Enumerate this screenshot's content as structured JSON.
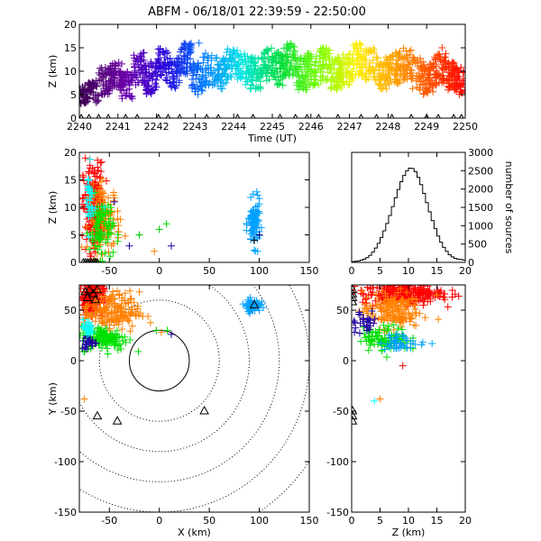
{
  "title": "ABFM - 06/18/01 22:39:59 - 22:50:00",
  "chart_data": [
    {
      "id": "time-height",
      "type": "scatter",
      "xlabel": "Time (UT)",
      "ylabel": "Z (km)",
      "xlim": [
        2240,
        2250
      ],
      "ylim": [
        0,
        20
      ],
      "x_ticks": [
        "2240",
        "2241",
        "2242",
        "2243",
        "2244",
        "2245",
        "2246",
        "2247",
        "2248",
        "2249",
        "2250"
      ],
      "y_ticks": [
        "0",
        "5",
        "10",
        "15",
        "20"
      ],
      "color_scale": "time rainbow: purple (2240) to red (2250)",
      "series": [
        {
          "x": [
            2240.2,
            2240.5,
            2240.8,
            2241.1,
            2241.4,
            2241.7,
            2242.0,
            2242.3,
            2242.6,
            2242.9,
            2243.2,
            2243.5,
            2243.8,
            2244.1,
            2244.4,
            2244.7,
            2245.0,
            2245.3,
            2245.6,
            2245.9,
            2246.2,
            2246.5,
            2246.8,
            2247.1,
            2247.4,
            2247.7,
            2248.0,
            2248.3,
            2248.6,
            2248.9,
            2249.2,
            2249.5,
            2249.8
          ],
          "y": [
            6,
            8,
            9,
            7,
            10,
            8,
            11,
            9,
            12,
            8,
            10,
            9,
            11,
            10,
            9,
            11,
            10,
            12,
            9,
            10,
            11,
            9,
            10,
            12,
            11,
            9,
            10,
            11,
            9,
            8,
            10,
            9,
            8
          ],
          "y_spread": [
            3,
            4,
            4,
            4,
            5,
            5,
            5,
            5,
            5,
            5,
            5,
            5,
            5,
            5,
            5,
            5,
            5,
            5,
            5,
            5,
            5,
            5,
            5,
            5,
            5,
            5,
            5,
            5,
            5,
            5,
            5,
            4,
            4
          ]
        }
      ],
      "outliers": [
        {
          "x": 2243.1,
          "y": 16
        },
        {
          "x": 2249.4,
          "y": 15
        },
        {
          "x": 2248.2,
          "y": 14
        }
      ],
      "stations_t": [
        2240.05,
        2240.25,
        2240.5,
        2240.75,
        2241.2,
        2241.5,
        2242.05,
        2242.3,
        2242.6,
        2243.3,
        2243.6,
        2244.1,
        2244.5,
        2245.2,
        2245.6,
        2245.9,
        2246.2,
        2246.7,
        2247.3,
        2247.7,
        2248.1,
        2248.6,
        2249.0,
        2249.3,
        2249.7,
        2249.9
      ]
    },
    {
      "id": "x-z",
      "type": "scatter",
      "xlabel": "",
      "ylabel": "Z (km)",
      "xlim": [
        -80,
        150
      ],
      "ylim": [
        0,
        20
      ],
      "x_ticks": [
        "-50",
        "0",
        "50",
        "100",
        "150"
      ],
      "y_ticks": [
        "0",
        "5",
        "10",
        "15",
        "20"
      ],
      "clusters": [
        {
          "color": "#ff0000",
          "cx": -66,
          "cy": 10,
          "sx": 5,
          "sy": 4,
          "n": 220
        },
        {
          "color": "#ff8000",
          "cx": -55,
          "cy": 8,
          "sx": 8,
          "sy": 3,
          "n": 120
        },
        {
          "color": "#00e000",
          "cx": -58,
          "cy": 6,
          "sx": 6,
          "sy": 3,
          "n": 80
        },
        {
          "color": "#00a0ff",
          "cx": 95,
          "cy": 7,
          "sx": 3,
          "sy": 2,
          "n": 90
        },
        {
          "color": "#00ffff",
          "cx": -70,
          "cy": 11,
          "sx": 2,
          "sy": 3,
          "n": 30
        }
      ],
      "scatter_points": [
        {
          "x": -20,
          "y": 5,
          "color": "#00c000"
        },
        {
          "x": 0,
          "y": 6,
          "color": "#00c000"
        },
        {
          "x": 7,
          "y": 7,
          "color": "#00e000"
        },
        {
          "x": -30,
          "y": 3,
          "color": "#2000a0"
        },
        {
          "x": 12,
          "y": 3,
          "color": "#2000a0"
        },
        {
          "x": -5,
          "y": 2,
          "color": "#ff8000"
        },
        {
          "x": -45,
          "y": 11,
          "color": "#2000a0"
        },
        {
          "x": -55,
          "y": 10,
          "color": "#00ffff"
        },
        {
          "x": 100,
          "y": 5,
          "color": "#000080"
        },
        {
          "x": 95,
          "y": 4,
          "color": "#000000"
        }
      ],
      "stations_x": [
        -76,
        -74,
        -72,
        -70,
        -68,
        -66,
        -64,
        -62
      ]
    },
    {
      "id": "height-histogram",
      "type": "line",
      "xlabel": "",
      "ylabel": "number of sources",
      "xlim": [
        0,
        20
      ],
      "ylim": [
        0,
        3000
      ],
      "x_ticks": [
        "0",
        "5",
        "10",
        "15",
        "20"
      ],
      "y_ticks": [
        "0",
        "500",
        "1000",
        "1500",
        "2000",
        "2500",
        "3000"
      ],
      "bin_width": 0.5,
      "bins_start": 0,
      "counts": [
        20,
        30,
        40,
        60,
        90,
        130,
        190,
        280,
        390,
        520,
        680,
        860,
        1060,
        1280,
        1520,
        1760,
        1990,
        2200,
        2370,
        2500,
        2570,
        2560,
        2470,
        2320,
        2120,
        1880,
        1630,
        1380,
        1140,
        920,
        720,
        550,
        410,
        300,
        210,
        150,
        110,
        90,
        80,
        60
      ]
    },
    {
      "id": "plan-view",
      "type": "scatter",
      "xlabel": "X (km)",
      "ylabel": "Y (km)",
      "xlim": [
        -80,
        150
      ],
      "ylim": [
        -150,
        75
      ],
      "x_ticks": [
        "-50",
        "0",
        "50",
        "100",
        "150"
      ],
      "y_ticks": [
        "-150",
        "-100",
        "-50",
        "0",
        "50"
      ],
      "range_rings_km": [
        30,
        60,
        90,
        120,
        150,
        180
      ],
      "clusters": [
        {
          "color": "#ff0000",
          "cx": -68,
          "cy": 62,
          "sx": 6,
          "sy": 8,
          "n": 180
        },
        {
          "color": "#ff8000",
          "cx": -48,
          "cy": 48,
          "sx": 14,
          "sy": 10,
          "n": 180
        },
        {
          "color": "#00e000",
          "cx": -55,
          "cy": 22,
          "sx": 12,
          "sy": 6,
          "n": 120
        },
        {
          "color": "#2000a0",
          "cx": -70,
          "cy": 18,
          "sx": 4,
          "sy": 4,
          "n": 25
        },
        {
          "color": "#00a0ff",
          "cx": 93,
          "cy": 55,
          "sx": 4,
          "sy": 3,
          "n": 60
        },
        {
          "color": "#00ffff",
          "cx": -72,
          "cy": 32,
          "sx": 3,
          "sy": 4,
          "n": 25
        }
      ],
      "scatter_points": [
        {
          "x": -3,
          "y": 30,
          "color": "#00c000"
        },
        {
          "x": 2,
          "y": 28,
          "color": "#ff8000"
        },
        {
          "x": 12,
          "y": 26,
          "color": "#2000a0"
        },
        {
          "x": -75,
          "y": -38,
          "color": "#ff8000"
        },
        {
          "x": 8,
          "y": 30,
          "color": "#00e000"
        }
      ],
      "stations": [
        {
          "x": -74,
          "y": 68
        },
        {
          "x": -70,
          "y": 70
        },
        {
          "x": -66,
          "y": 66
        },
        {
          "x": -62,
          "y": 70
        },
        {
          "x": -72,
          "y": 62
        },
        {
          "x": -64,
          "y": 60
        },
        {
          "x": -62,
          "y": -55
        },
        {
          "x": -42,
          "y": -60
        },
        {
          "x": 45,
          "y": -50
        },
        {
          "x": 95,
          "y": 55
        }
      ]
    },
    {
      "id": "z-y",
      "type": "scatter",
      "xlabel": "Z (km)",
      "ylabel": "",
      "xlim": [
        0,
        20
      ],
      "ylim": [
        -150,
        75
      ],
      "x_ticks": [
        "0",
        "5",
        "10",
        "15",
        "20"
      ],
      "y_ticks": [
        "-150",
        "-100",
        "-50",
        "0",
        "50"
      ],
      "clusters": [
        {
          "color": "#ff0000",
          "cx": 9,
          "cy": 66,
          "sx": 3.5,
          "sy": 5,
          "n": 260
        },
        {
          "color": "#ff8000",
          "cx": 7,
          "cy": 50,
          "sx": 2.5,
          "sy": 9,
          "n": 160
        },
        {
          "color": "#00e000",
          "cx": 6,
          "cy": 22,
          "sx": 2,
          "sy": 6,
          "n": 100
        },
        {
          "color": "#00a0ff",
          "cx": 9,
          "cy": 18,
          "sx": 2,
          "sy": 4,
          "n": 40
        },
        {
          "color": "#2000a0",
          "cx": 2,
          "cy": 38,
          "sx": 1.5,
          "sy": 6,
          "n": 30
        }
      ],
      "scatter_points": [
        {
          "x": 5,
          "y": -38,
          "color": "#ff8000"
        },
        {
          "x": 4,
          "y": -40,
          "color": "#00ffff"
        },
        {
          "x": 9,
          "y": -5,
          "color": "#d00000"
        },
        {
          "x": 15,
          "y": 65,
          "color": "#ff8000"
        }
      ],
      "stations_y": [
        66,
        62,
        58,
        70,
        -50,
        -55,
        -60
      ]
    }
  ]
}
